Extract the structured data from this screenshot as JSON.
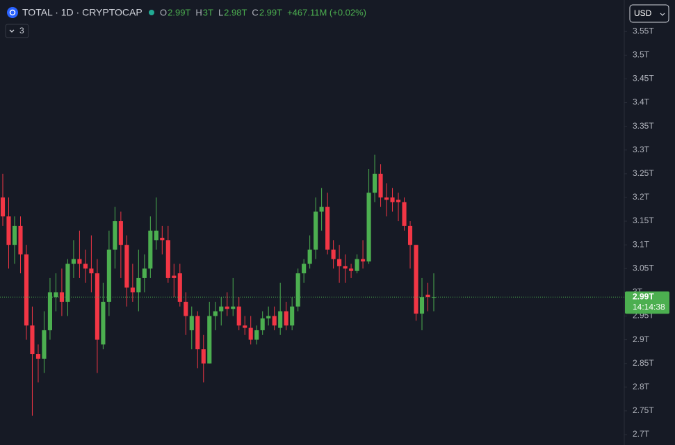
{
  "header": {
    "symbol": "TOTAL · 1D · CRYPTOCAP",
    "ohlc": [
      {
        "label": "O",
        "value": "2.99T"
      },
      {
        "label": "H",
        "value": "3T"
      },
      {
        "label": "L",
        "value": "2.98T"
      },
      {
        "label": "C",
        "value": "2.99T"
      }
    ],
    "change": "+467.11M (+0.02%)",
    "indicators": "3",
    "currency": "USD"
  },
  "price_label": {
    "price": "2.99T",
    "countdown": "14:14:38"
  },
  "chart_data": {
    "type": "candlestick",
    "up_color": "#4caf50",
    "down_color": "#f23645",
    "ylim": [
      2.678,
      3.609
    ],
    "yticks": [
      {
        "value": 2.7,
        "label": "2.7T"
      },
      {
        "value": 2.75,
        "label": "2.75T"
      },
      {
        "value": 2.8,
        "label": "2.8T"
      },
      {
        "value": 2.85,
        "label": "2.85T"
      },
      {
        "value": 2.9,
        "label": "2.9T"
      },
      {
        "value": 2.95,
        "label": "2.95T"
      },
      {
        "value": 3,
        "label": "3T"
      },
      {
        "value": 3.05,
        "label": "3.05T"
      },
      {
        "value": 3.1,
        "label": "3.1T"
      },
      {
        "value": 3.15,
        "label": "3.15T"
      },
      {
        "value": 3.2,
        "label": "3.2T"
      },
      {
        "value": 3.25,
        "label": "3.25T"
      },
      {
        "value": 3.3,
        "label": "3.3T"
      },
      {
        "value": 3.35,
        "label": "3.35T"
      },
      {
        "value": 3.4,
        "label": "3.4T"
      },
      {
        "value": 3.45,
        "label": "3.45T"
      },
      {
        "value": 3.5,
        "label": "3.5T"
      },
      {
        "value": 3.55,
        "label": "3.55T"
      }
    ],
    "open": [
      3.2,
      3.16,
      3.1,
      3.14,
      3.08,
      2.93,
      2.87,
      2.86,
      2.92,
      2.99,
      3.0,
      2.98,
      3.06,
      3.07,
      3.06,
      3.05,
      3.04,
      2.89,
      2.98,
      3.09,
      3.15,
      3.1,
      3.01,
      3.0,
      3.03,
      3.05,
      3.11,
      3.115,
      3.11,
      3.035,
      3.04,
      2.98,
      2.92,
      2.95,
      2.88,
      2.85,
      2.95,
      2.96,
      2.97,
      2.965,
      2.97,
      2.93,
      2.925,
      2.9,
      2.92,
      2.945,
      2.95,
      2.925,
      2.96,
      2.93,
      2.97,
      3.04,
      3.06,
      3.09,
      3.17,
      3.18,
      3.09,
      3.07,
      3.055,
      3.05,
      3.045,
      3.07,
      3.065,
      3.21,
      3.25,
      3.2,
      3.2,
      3.195,
      3.19,
      3.14,
      3.1,
      2.955,
      2.995,
      2.99
    ],
    "high": [
      3.25,
      3.2,
      3.16,
      3.16,
      3.1,
      2.97,
      2.89,
      2.96,
      3.03,
      3.04,
      3.05,
      3.07,
      3.11,
      3.13,
      3.09,
      3.12,
      3.07,
      3.02,
      3.13,
      3.18,
      3.17,
      3.12,
      3.06,
      3.09,
      3.08,
      3.16,
      3.2,
      3.14,
      3.14,
      3.06,
      3.06,
      3.0,
      2.97,
      2.96,
      2.91,
      2.98,
      2.98,
      2.99,
      3.0,
      3.03,
      2.99,
      2.95,
      2.95,
      2.93,
      2.96,
      2.97,
      2.97,
      3.02,
      2.98,
      2.99,
      3.05,
      3.07,
      3.12,
      3.2,
      3.22,
      3.21,
      3.11,
      3.1,
      3.08,
      3.06,
      3.08,
      3.11,
      3.26,
      3.29,
      3.27,
      3.23,
      3.22,
      3.21,
      3.2,
      3.15,
      3.1,
      3.03,
      3.02,
      3.04
    ],
    "low": [
      3.14,
      3.05,
      3.06,
      3.04,
      2.9,
      2.74,
      2.81,
      2.83,
      2.9,
      2.96,
      2.95,
      2.95,
      3.03,
      3.03,
      3.02,
      3.0,
      2.83,
      2.88,
      2.95,
      3.05,
      3.03,
      2.97,
      2.98,
      2.96,
      3.0,
      3.03,
      3.09,
      3.08,
      3.02,
      2.99,
      2.97,
      2.91,
      2.88,
      2.84,
      2.81,
      2.85,
      2.92,
      2.93,
      2.95,
      2.95,
      2.92,
      2.91,
      2.89,
      2.89,
      2.91,
      2.93,
      2.92,
      2.91,
      2.92,
      2.92,
      2.96,
      3.02,
      3.05,
      3.07,
      3.13,
      3.08,
      3.05,
      3.02,
      3.02,
      3.03,
      3.04,
      3.05,
      3.06,
      3.19,
      3.18,
      3.16,
      3.17,
      3.15,
      3.13,
      3.05,
      2.94,
      2.92,
      2.96,
      2.96
    ],
    "close": [
      3.16,
      3.1,
      3.14,
      3.08,
      2.93,
      2.87,
      2.86,
      2.92,
      3.0,
      3.0,
      2.98,
      3.06,
      3.07,
      3.06,
      3.05,
      3.04,
      2.9,
      2.98,
      3.09,
      3.15,
      3.1,
      3.01,
      3.0,
      3.03,
      3.05,
      3.13,
      3.13,
      3.11,
      3.03,
      3.03,
      2.98,
      2.95,
      2.95,
      2.88,
      2.85,
      2.95,
      2.96,
      2.97,
      2.965,
      2.97,
      2.93,
      2.925,
      2.9,
      2.92,
      2.945,
      2.95,
      2.93,
      2.96,
      2.93,
      2.97,
      3.04,
      3.06,
      3.09,
      3.17,
      3.18,
      3.09,
      3.07,
      3.055,
      3.05,
      3.045,
      3.07,
      3.065,
      3.21,
      3.25,
      3.2,
      3.195,
      3.19,
      3.19,
      3.14,
      3.1,
      2.955,
      2.99,
      2.99,
      2.99
    ]
  }
}
